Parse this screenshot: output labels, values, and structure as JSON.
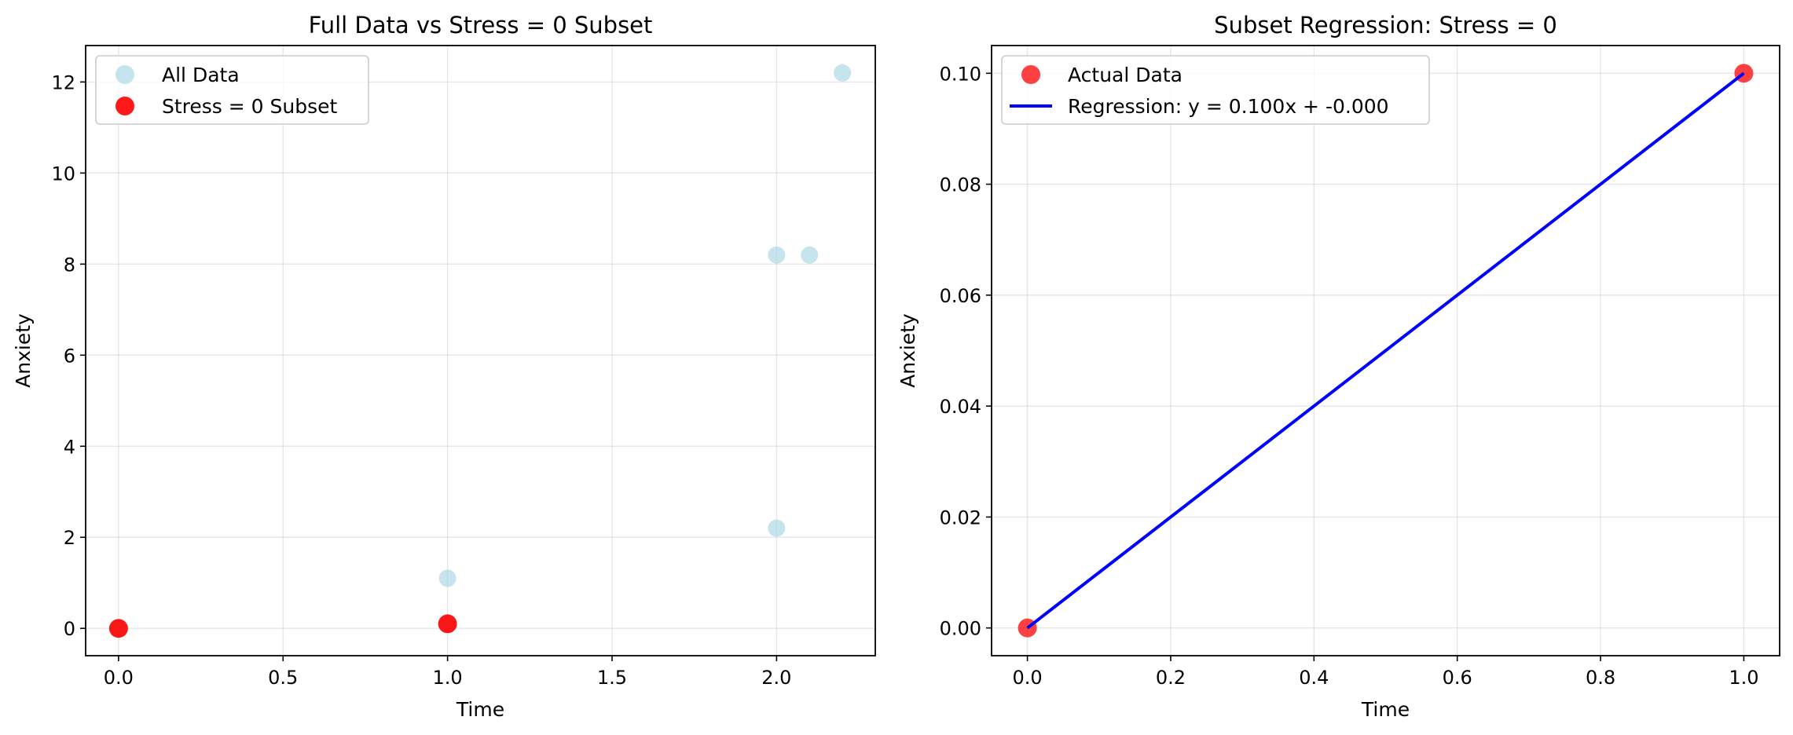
{
  "chart_data": [
    {
      "type": "scatter",
      "title": "Full Data vs Stress = 0 Subset",
      "xlabel": "Time",
      "ylabel": "Anxiety",
      "xlim": [
        -0.1,
        2.3
      ],
      "ylim": [
        -0.6,
        12.8
      ],
      "xticks": [
        0.0,
        0.5,
        1.0,
        1.5,
        2.0
      ],
      "xtick_labels": [
        "0.0",
        "0.5",
        "1.0",
        "1.5",
        "2.0"
      ],
      "yticks": [
        0,
        2,
        4,
        6,
        8,
        10,
        12
      ],
      "ytick_labels": [
        "0",
        "2",
        "4",
        "6",
        "8",
        "10",
        "12"
      ],
      "grid": true,
      "legend_position": "upper-left",
      "series": [
        {
          "name": "All Data",
          "kind": "scatter",
          "color": "#add8e6",
          "opacity": 0.7,
          "points": [
            [
              0.0,
              0.0
            ],
            [
              1.0,
              0.1
            ],
            [
              1.0,
              1.1
            ],
            [
              2.0,
              2.2
            ],
            [
              2.0,
              8.2
            ],
            [
              2.1,
              8.2
            ],
            [
              2.2,
              12.2
            ]
          ]
        },
        {
          "name": "Stress = 0 Subset",
          "kind": "scatter",
          "color": "#ff0000",
          "opacity": 0.9,
          "points": [
            [
              0.0,
              0.0
            ],
            [
              1.0,
              0.1
            ]
          ]
        }
      ]
    },
    {
      "type": "scatter",
      "title": "Subset Regression: Stress = 0",
      "xlabel": "Time",
      "ylabel": "Anxiety",
      "xlim": [
        -0.05,
        1.05
      ],
      "ylim": [
        -0.005,
        0.105
      ],
      "xticks": [
        0.0,
        0.2,
        0.4,
        0.6,
        0.8,
        1.0
      ],
      "xtick_labels": [
        "0.0",
        "0.2",
        "0.4",
        "0.6",
        "0.8",
        "1.0"
      ],
      "yticks": [
        0.0,
        0.02,
        0.04,
        0.06,
        0.08,
        0.1
      ],
      "ytick_labels": [
        "0.00",
        "0.02",
        "0.04",
        "0.06",
        "0.08",
        "0.10"
      ],
      "grid": true,
      "legend_position": "upper-left",
      "series": [
        {
          "name": "Actual Data",
          "kind": "scatter",
          "color": "#ff0000",
          "opacity": 0.75,
          "points": [
            [
              0.0,
              0.0
            ],
            [
              1.0,
              0.1
            ]
          ]
        },
        {
          "name": "Regression: y = 0.100x + -0.000",
          "kind": "line",
          "color": "#0000ff",
          "points": [
            [
              0.0,
              0.0
            ],
            [
              1.0,
              0.1
            ]
          ]
        }
      ]
    }
  ]
}
